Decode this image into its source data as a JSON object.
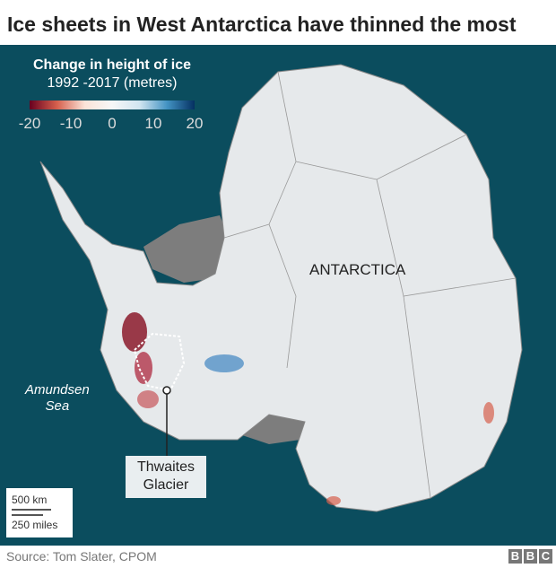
{
  "title": "Ice sheets in West Antarctica have thinned the most",
  "legend": {
    "title": "Change in height of ice",
    "subtitle": "1992 -2017 (metres)",
    "ticks": [
      "-20",
      "-10",
      "0",
      "10",
      "20"
    ],
    "colors": [
      "#67001f",
      "#d6604d",
      "#f7f7f7",
      "#4393c3",
      "#053061"
    ]
  },
  "labels": {
    "continent": "ANTARCTICA",
    "sea_line1": "Amundsen",
    "sea_line2": "Sea",
    "glacier_line1": "Thwaites",
    "glacier_line2": "Glacier"
  },
  "scale": {
    "km": "500 km",
    "miles": "250 miles"
  },
  "source": "Source: Tom Slater, CPOM",
  "logo": [
    "B",
    "B",
    "C"
  ],
  "colors": {
    "ocean": "#0b4d5e",
    "ice": "#e6e9eb",
    "ice_shelf": "#7a7a7a"
  }
}
